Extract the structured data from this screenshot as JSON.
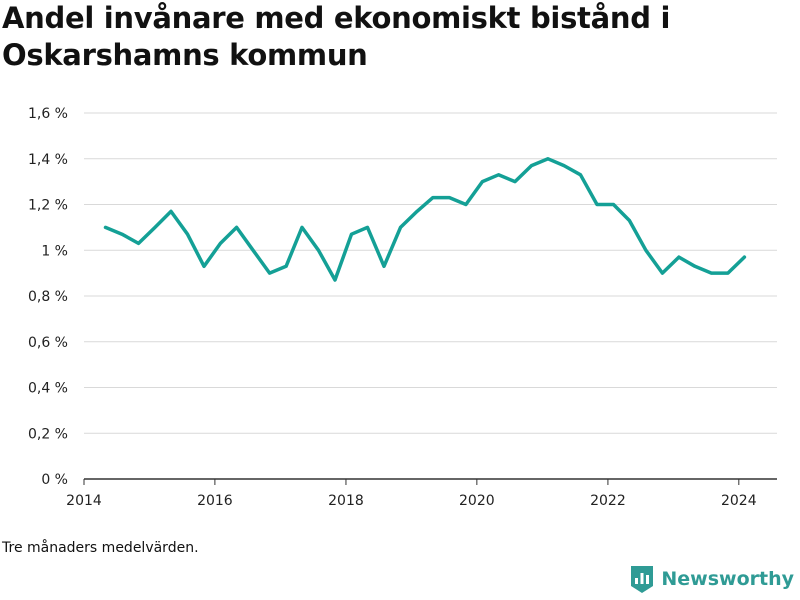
{
  "title": "Andel invånare med ekonomiskt bistånd i Oskarshamns kommun",
  "note": "Tre månaders medelvärden.",
  "brand": {
    "name": "Newsworthy",
    "color": "#2f9b95"
  },
  "chart_data": {
    "type": "line",
    "title": "Andel invånare med ekonomiskt bistånd i Oskarshamns kommun",
    "xlabel": "",
    "ylabel": "",
    "x_ticks": [
      "2014",
      "2016",
      "2018",
      "2020",
      "2022",
      "2024"
    ],
    "y_ticks": [
      "0 %",
      "0,2 %",
      "0,4 %",
      "0,6 %",
      "0,8 %",
      "1 %",
      "1,2 %",
      "1,4 %",
      "1,6 %"
    ],
    "xlim": [
      "2014-01-01",
      "2024-08-01"
    ],
    "ylim": [
      0,
      1.6
    ],
    "grid": true,
    "line_color": "#14a096",
    "series": [
      {
        "x": [
          "2014-05-01",
          "2014-08-01",
          "2014-11-01",
          "2015-02-01",
          "2015-05-01",
          "2015-08-01",
          "2015-11-01",
          "2016-02-01",
          "2016-05-01",
          "2016-08-01",
          "2016-11-01",
          "2017-02-01",
          "2017-05-01",
          "2017-08-01",
          "2017-11-01",
          "2018-02-01",
          "2018-05-01",
          "2018-08-01",
          "2018-11-01",
          "2019-02-01",
          "2019-05-01",
          "2019-08-01",
          "2019-11-01",
          "2020-02-01",
          "2020-05-01",
          "2020-08-01",
          "2020-11-01",
          "2021-02-01",
          "2021-05-01",
          "2021-08-01",
          "2021-11-01",
          "2022-02-01",
          "2022-05-01",
          "2022-08-01",
          "2022-11-01",
          "2023-02-01",
          "2023-05-01",
          "2023-08-01",
          "2023-11-01",
          "2024-02-01"
        ],
        "values": [
          1.1,
          1.07,
          1.03,
          1.1,
          1.17,
          1.07,
          0.93,
          1.03,
          1.1,
          1.0,
          0.9,
          0.93,
          1.1,
          1.0,
          0.87,
          1.07,
          1.1,
          0.93,
          1.1,
          1.17,
          1.23,
          1.23,
          1.2,
          1.3,
          1.33,
          1.3,
          1.37,
          1.4,
          1.37,
          1.33,
          1.2,
          1.2,
          1.13,
          1.0,
          0.9,
          0.97,
          0.93,
          0.9,
          0.9,
          0.97
        ]
      }
    ]
  }
}
